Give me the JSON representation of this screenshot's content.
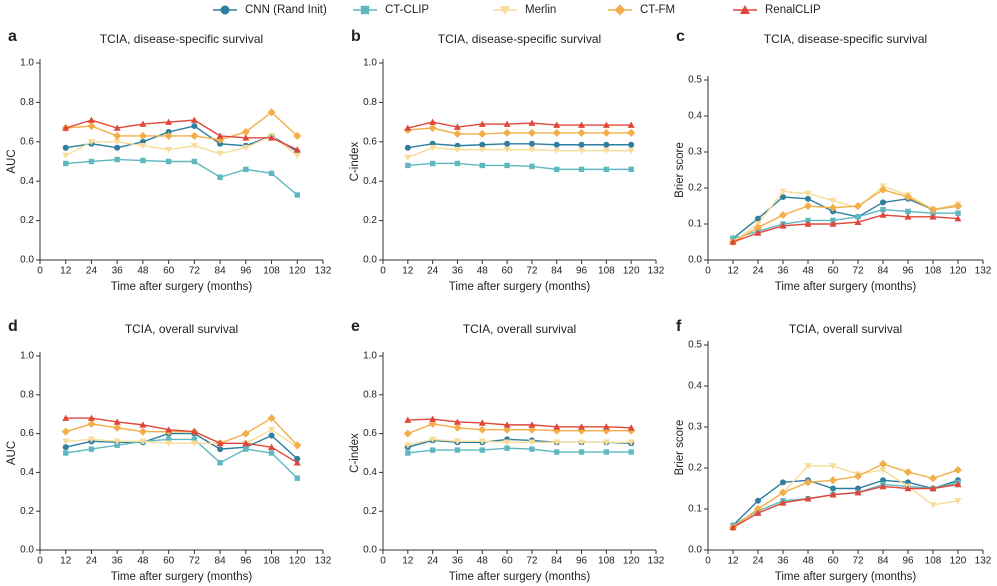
{
  "chart_data": [
    {
      "type": "line",
      "label": "a",
      "title": "TCIA, disease-specific survival",
      "xlabel": "Time after surgery (months)",
      "ylabel": "AUC",
      "x": [
        12,
        24,
        36,
        48,
        60,
        72,
        84,
        96,
        108,
        120
      ],
      "xlim": [
        0,
        132
      ],
      "xticks": [
        0,
        12,
        24,
        36,
        48,
        60,
        72,
        84,
        96,
        108,
        120,
        132
      ],
      "ylim": [
        0,
        1
      ],
      "yticks": [
        {
          "value": 0,
          "label": "0.0"
        },
        0.2,
        0.4,
        0.6,
        0.8,
        {
          "value": 1,
          "label": "1.0"
        }
      ],
      "series": [
        {
          "name": "CNN (Rand Init)",
          "color": "#2e7ea0",
          "marker": "circle",
          "values": [
            0.57,
            0.59,
            0.57,
            0.6,
            0.65,
            0.68,
            0.59,
            0.58,
            0.63,
            0.55
          ]
        },
        {
          "name": "CT-CLIP",
          "color": "#5fb8c0",
          "marker": "square",
          "values": [
            0.49,
            0.5,
            0.51,
            0.505,
            0.5,
            0.5,
            0.42,
            0.46,
            0.44,
            0.33
          ]
        },
        {
          "name": "Merlin",
          "color": "#f8dc98",
          "marker": "triangle-down",
          "values": [
            0.53,
            0.6,
            0.6,
            0.58,
            0.56,
            0.58,
            0.54,
            0.57,
            0.63,
            0.53
          ]
        },
        {
          "name": "CT-FM",
          "color": "#f2ae48",
          "marker": "diamond",
          "values": [
            0.67,
            0.68,
            0.63,
            0.63,
            0.63,
            0.63,
            0.61,
            0.65,
            0.75,
            0.63
          ]
        },
        {
          "name": "RenalCLIP",
          "color": "#e0473a",
          "marker": "triangle-up",
          "values": [
            0.67,
            0.71,
            0.67,
            0.69,
            0.7,
            0.71,
            0.63,
            0.62,
            0.62,
            0.56
          ]
        }
      ]
    },
    {
      "type": "line",
      "label": "b",
      "title": "TCIA, disease-specific survival",
      "xlabel": "Time after surgery (months)",
      "ylabel": "C-index",
      "x": [
        12,
        24,
        36,
        48,
        60,
        72,
        84,
        96,
        108,
        120
      ],
      "xlim": [
        0,
        132
      ],
      "xticks": [
        0,
        12,
        24,
        36,
        48,
        60,
        72,
        84,
        96,
        108,
        120,
        132
      ],
      "ylim": [
        0,
        1
      ],
      "yticks": [
        {
          "value": 0,
          "label": "0.0"
        },
        0.2,
        0.4,
        0.6,
        0.8,
        {
          "value": 1,
          "label": "1.0"
        }
      ],
      "series": [
        {
          "name": "CNN (Rand Init)",
          "color": "#2e7ea0",
          "marker": "circle",
          "values": [
            0.57,
            0.59,
            0.58,
            0.585,
            0.59,
            0.59,
            0.585,
            0.585,
            0.585,
            0.585
          ]
        },
        {
          "name": "CT-CLIP",
          "color": "#5fb8c0",
          "marker": "square",
          "values": [
            0.48,
            0.49,
            0.49,
            0.48,
            0.48,
            0.475,
            0.46,
            0.46,
            0.46,
            0.46
          ]
        },
        {
          "name": "Merlin",
          "color": "#f8dc98",
          "marker": "triangle-down",
          "values": [
            0.52,
            0.57,
            0.56,
            0.56,
            0.56,
            0.56,
            0.555,
            0.555,
            0.555,
            0.555
          ]
        },
        {
          "name": "CT-FM",
          "color": "#f2ae48",
          "marker": "diamond",
          "values": [
            0.66,
            0.67,
            0.64,
            0.64,
            0.645,
            0.645,
            0.645,
            0.645,
            0.645,
            0.645
          ]
        },
        {
          "name": "RenalCLIP",
          "color": "#e0473a",
          "marker": "triangle-up",
          "values": [
            0.67,
            0.7,
            0.675,
            0.69,
            0.69,
            0.695,
            0.685,
            0.685,
            0.685,
            0.685
          ]
        }
      ]
    },
    {
      "type": "line",
      "label": "c",
      "title": "TCIA, disease-specific survival",
      "xlabel": "Time after surgery (months)",
      "ylabel": "Brier score",
      "x": [
        12,
        24,
        36,
        48,
        60,
        72,
        84,
        96,
        108,
        120
      ],
      "xlim": [
        0,
        132
      ],
      "xticks": [
        0,
        12,
        24,
        36,
        48,
        60,
        72,
        84,
        96,
        108,
        120,
        132
      ],
      "ylim": [
        0,
        0.5
      ],
      "yticks": [
        {
          "value": 0,
          "label": "0.0"
        },
        0.1,
        0.2,
        0.3,
        0.4,
        0.5
      ],
      "series": [
        {
          "name": "CNN (Rand Init)",
          "color": "#2e7ea0",
          "marker": "circle",
          "values": [
            0.06,
            0.115,
            0.175,
            0.17,
            0.135,
            0.12,
            0.16,
            0.17,
            0.14,
            0.15
          ]
        },
        {
          "name": "CT-CLIP",
          "color": "#5fb8c0",
          "marker": "square",
          "values": [
            0.06,
            0.08,
            0.1,
            0.11,
            0.11,
            0.12,
            0.14,
            0.135,
            0.13,
            0.13
          ]
        },
        {
          "name": "Merlin",
          "color": "#f8dc98",
          "marker": "triangle-down",
          "values": [
            0.05,
            0.1,
            0.19,
            0.185,
            0.165,
            0.145,
            0.205,
            0.18,
            0.14,
            0.155
          ]
        },
        {
          "name": "CT-FM",
          "color": "#f2ae48",
          "marker": "diamond",
          "values": [
            0.05,
            0.09,
            0.125,
            0.15,
            0.145,
            0.15,
            0.195,
            0.175,
            0.14,
            0.15
          ]
        },
        {
          "name": "RenalCLIP",
          "color": "#e0473a",
          "marker": "triangle-up",
          "values": [
            0.05,
            0.075,
            0.095,
            0.1,
            0.1,
            0.105,
            0.125,
            0.12,
            0.12,
            0.115
          ]
        }
      ]
    },
    {
      "type": "line",
      "label": "d",
      "title": "TCIA, overall survival",
      "xlabel": "Time after surgery (months)",
      "ylabel": "AUC",
      "x": [
        12,
        24,
        36,
        48,
        60,
        72,
        84,
        96,
        108,
        120
      ],
      "xlim": [
        0,
        132
      ],
      "xticks": [
        0,
        12,
        24,
        36,
        48,
        60,
        72,
        84,
        96,
        108,
        120,
        132
      ],
      "ylim": [
        0,
        1
      ],
      "yticks": [
        {
          "value": 0,
          "label": "0.0"
        },
        0.2,
        0.4,
        0.6,
        0.8,
        {
          "value": 1,
          "label": "1.0"
        }
      ],
      "series": [
        {
          "name": "CNN (Rand Init)",
          "color": "#2e7ea0",
          "marker": "circle",
          "values": [
            0.53,
            0.56,
            0.555,
            0.555,
            0.6,
            0.6,
            0.52,
            0.53,
            0.59,
            0.47
          ]
        },
        {
          "name": "CT-CLIP",
          "color": "#5fb8c0",
          "marker": "square",
          "values": [
            0.5,
            0.52,
            0.54,
            0.56,
            0.57,
            0.57,
            0.45,
            0.52,
            0.5,
            0.37
          ]
        },
        {
          "name": "Merlin",
          "color": "#f8dc98",
          "marker": "triangle-down",
          "values": [
            0.56,
            0.57,
            0.56,
            0.56,
            0.55,
            0.55,
            0.55,
            0.55,
            0.62,
            0.53
          ]
        },
        {
          "name": "CT-FM",
          "color": "#f2ae48",
          "marker": "diamond",
          "values": [
            0.61,
            0.65,
            0.63,
            0.61,
            0.61,
            0.61,
            0.55,
            0.6,
            0.68,
            0.54
          ]
        },
        {
          "name": "RenalCLIP",
          "color": "#e0473a",
          "marker": "triangle-up",
          "values": [
            0.68,
            0.68,
            0.66,
            0.645,
            0.62,
            0.61,
            0.55,
            0.55,
            0.53,
            0.45
          ]
        }
      ]
    },
    {
      "type": "line",
      "label": "e",
      "title": "TCIA, overall survival",
      "xlabel": "Time after surgery (months)",
      "ylabel": "C-index",
      "x": [
        12,
        24,
        36,
        48,
        60,
        72,
        84,
        96,
        108,
        120
      ],
      "xlim": [
        0,
        132
      ],
      "xticks": [
        0,
        12,
        24,
        36,
        48,
        60,
        72,
        84,
        96,
        108,
        120,
        132
      ],
      "ylim": [
        0,
        1
      ],
      "yticks": [
        {
          "value": 0,
          "label": "0.0"
        },
        0.2,
        0.4,
        0.6,
        0.8,
        {
          "value": 1,
          "label": "1.0"
        }
      ],
      "series": [
        {
          "name": "CNN (Rand Init)",
          "color": "#2e7ea0",
          "marker": "circle",
          "values": [
            0.53,
            0.565,
            0.555,
            0.555,
            0.57,
            0.565,
            0.555,
            0.555,
            0.555,
            0.55
          ]
        },
        {
          "name": "CT-CLIP",
          "color": "#5fb8c0",
          "marker": "square",
          "values": [
            0.5,
            0.515,
            0.515,
            0.515,
            0.525,
            0.52,
            0.505,
            0.505,
            0.505,
            0.505
          ]
        },
        {
          "name": "Merlin",
          "color": "#f8dc98",
          "marker": "triangle-down",
          "values": [
            0.54,
            0.57,
            0.56,
            0.56,
            0.555,
            0.555,
            0.555,
            0.555,
            0.555,
            0.555
          ]
        },
        {
          "name": "CT-FM",
          "color": "#f2ae48",
          "marker": "diamond",
          "values": [
            0.6,
            0.65,
            0.63,
            0.62,
            0.62,
            0.62,
            0.615,
            0.615,
            0.615,
            0.615
          ]
        },
        {
          "name": "RenalCLIP",
          "color": "#e0473a",
          "marker": "triangle-up",
          "values": [
            0.67,
            0.675,
            0.66,
            0.655,
            0.645,
            0.645,
            0.635,
            0.635,
            0.635,
            0.63
          ]
        }
      ]
    },
    {
      "type": "line",
      "label": "f",
      "title": "TCIA, overall survival",
      "xlabel": "Time after surgery (months)",
      "ylabel": "Brier score",
      "x": [
        12,
        24,
        36,
        48,
        60,
        72,
        84,
        96,
        108,
        120
      ],
      "xlim": [
        0,
        132
      ],
      "xticks": [
        0,
        12,
        24,
        36,
        48,
        60,
        72,
        84,
        96,
        108,
        120,
        132
      ],
      "ylim": [
        0,
        0.5
      ],
      "yticks": [
        {
          "value": 0,
          "label": "0.0"
        },
        0.1,
        0.2,
        0.3,
        0.4,
        0.5
      ],
      "series": [
        {
          "name": "CNN (Rand Init)",
          "color": "#2e7ea0",
          "marker": "circle",
          "values": [
            0.06,
            0.12,
            0.165,
            0.17,
            0.15,
            0.15,
            0.17,
            0.165,
            0.15,
            0.17
          ]
        },
        {
          "name": "CT-CLIP",
          "color": "#5fb8c0",
          "marker": "square",
          "values": [
            0.06,
            0.095,
            0.12,
            0.125,
            0.135,
            0.14,
            0.16,
            0.155,
            0.15,
            0.165
          ]
        },
        {
          "name": "Merlin",
          "color": "#f8dc98",
          "marker": "triangle-down",
          "values": [
            0.055,
            0.1,
            0.14,
            0.205,
            0.205,
            0.185,
            0.195,
            0.155,
            0.11,
            0.12
          ]
        },
        {
          "name": "CT-FM",
          "color": "#f2ae48",
          "marker": "diamond",
          "values": [
            0.055,
            0.1,
            0.14,
            0.165,
            0.17,
            0.18,
            0.21,
            0.19,
            0.175,
            0.195
          ]
        },
        {
          "name": "RenalCLIP",
          "color": "#e0473a",
          "marker": "triangle-up",
          "values": [
            0.055,
            0.09,
            0.115,
            0.125,
            0.135,
            0.14,
            0.155,
            0.15,
            0.15,
            0.16
          ]
        }
      ]
    }
  ]
}
